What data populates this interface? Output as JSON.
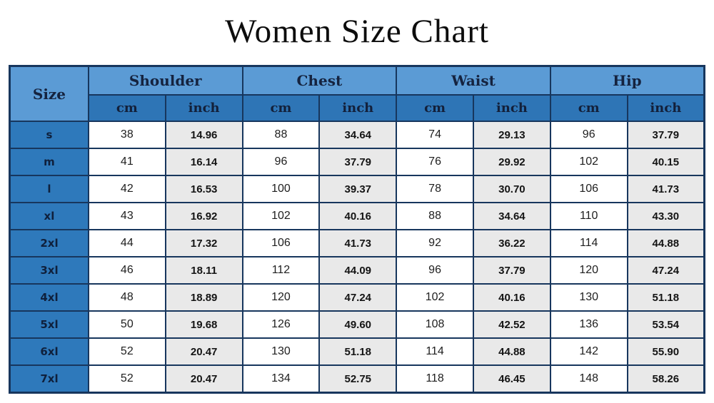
{
  "page": {
    "title": "Women Size Chart"
  },
  "colors": {
    "group_header_bg": "#5b9bd5",
    "unit_header_bg": "#2e75b6",
    "size_cell_bg": "#2e79bb",
    "cm_cell_bg": "#ffffff",
    "inch_cell_bg": "#e9e9e9",
    "border": "#17365d",
    "title_text": "#0d0d0d",
    "header_text": "#15233f"
  },
  "chart_data": {
    "type": "table",
    "title": "Women Size Chart",
    "size_header": "Size",
    "groups": [
      {
        "label": "Shoulder"
      },
      {
        "label": "Chest"
      },
      {
        "label": "Waist"
      },
      {
        "label": "Hip"
      }
    ],
    "subheaders": [
      "cm",
      "inch",
      "cm",
      "inch",
      "cm",
      "inch",
      "cm",
      "inch"
    ],
    "rows": [
      {
        "size": "s",
        "values": [
          "38",
          "14.96",
          "88",
          "34.64",
          "74",
          "29.13",
          "96",
          "37.79"
        ]
      },
      {
        "size": "m",
        "values": [
          "41",
          "16.14",
          "96",
          "37.79",
          "76",
          "29.92",
          "102",
          "40.15"
        ]
      },
      {
        "size": "l",
        "values": [
          "42",
          "16.53",
          "100",
          "39.37",
          "78",
          "30.70",
          "106",
          "41.73"
        ]
      },
      {
        "size": "xl",
        "values": [
          "43",
          "16.92",
          "102",
          "40.16",
          "88",
          "34.64",
          "110",
          "43.30"
        ]
      },
      {
        "size": "2xl",
        "values": [
          "44",
          "17.32",
          "106",
          "41.73",
          "92",
          "36.22",
          "114",
          "44.88"
        ]
      },
      {
        "size": "3xl",
        "values": [
          "46",
          "18.11",
          "112",
          "44.09",
          "96",
          "37.79",
          "120",
          "47.24"
        ]
      },
      {
        "size": "4xl",
        "values": [
          "48",
          "18.89",
          "120",
          "47.24",
          "102",
          "40.16",
          "130",
          "51.18"
        ]
      },
      {
        "size": "5xl",
        "values": [
          "50",
          "19.68",
          "126",
          "49.60",
          "108",
          "42.52",
          "136",
          "53.54"
        ]
      },
      {
        "size": "6xl",
        "values": [
          "52",
          "20.47",
          "130",
          "51.18",
          "114",
          "44.88",
          "142",
          "55.90"
        ]
      },
      {
        "size": "7xl",
        "values": [
          "52",
          "20.47",
          "134",
          "52.75",
          "118",
          "46.45",
          "148",
          "58.26"
        ]
      }
    ]
  }
}
